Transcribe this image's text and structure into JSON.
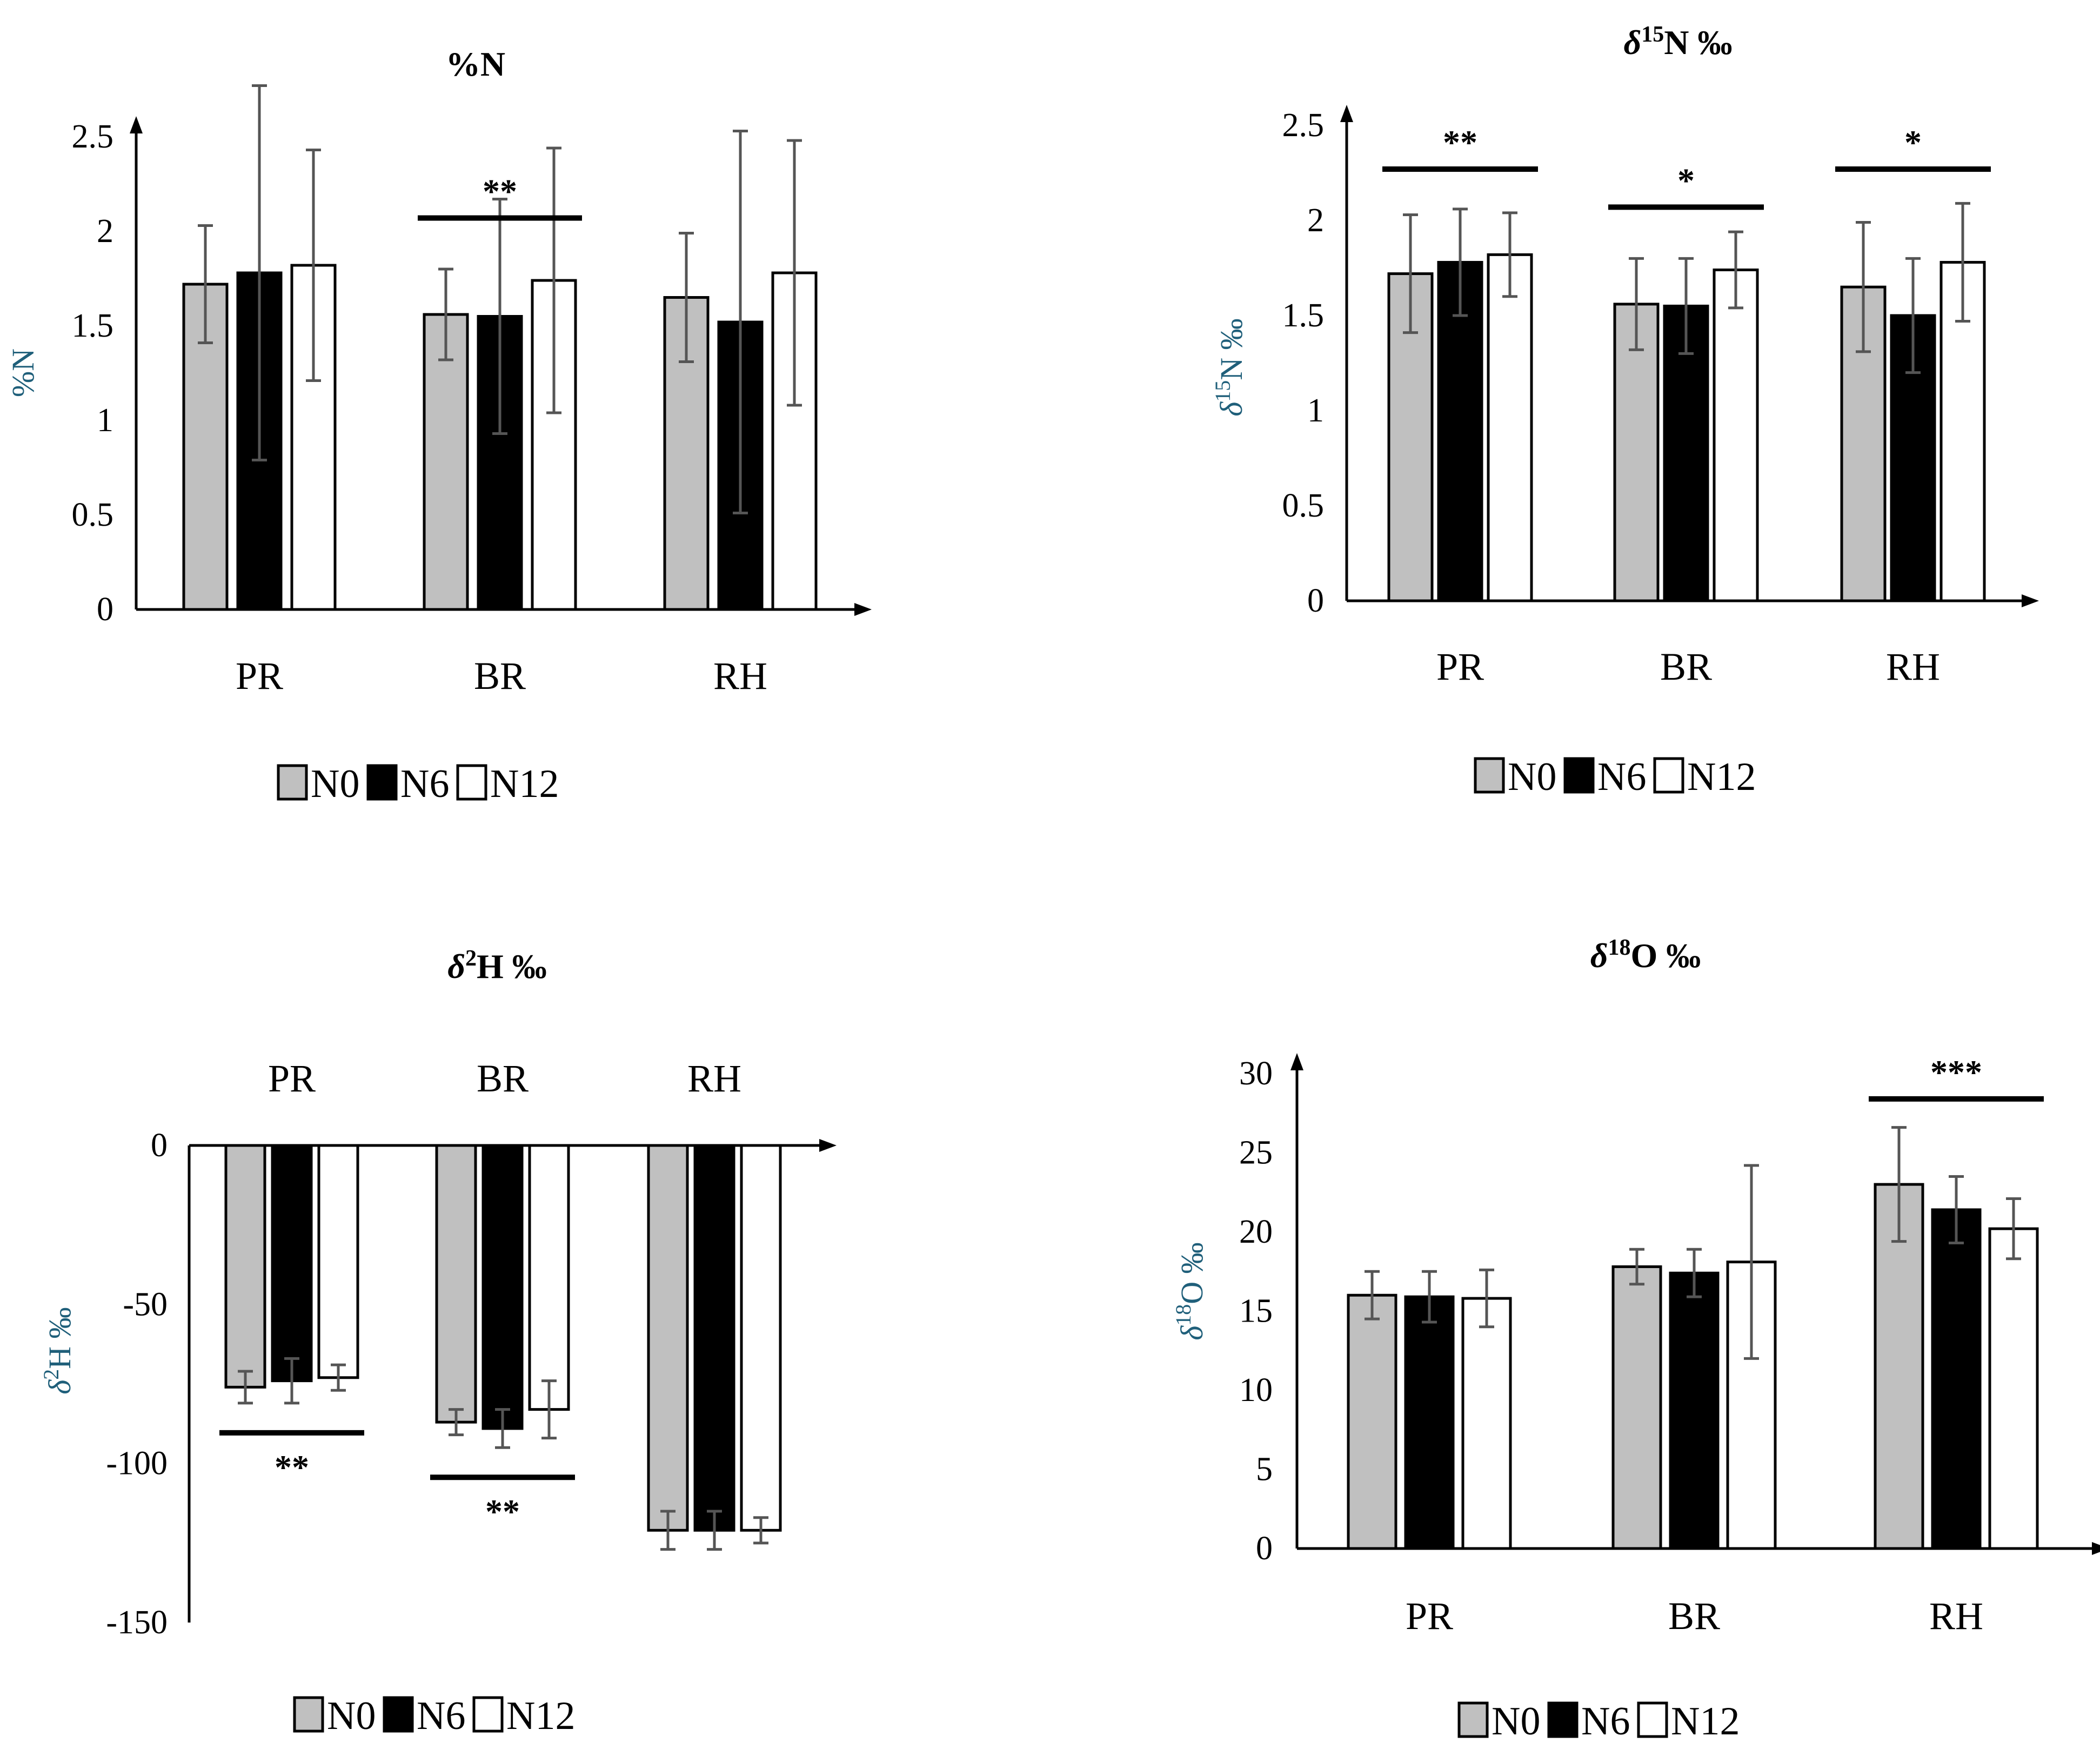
{
  "colors": {
    "N0": "#c0c0c0",
    "N6": "#000000",
    "N12": "#ffffff",
    "axis": "#000000",
    "errorbar": "#555555",
    "ylabel": "#1f5f7a"
  },
  "chart_data": [
    {
      "id": "pn",
      "type": "bar",
      "title": "%N",
      "title_parts": [
        {
          "t": "%N"
        }
      ],
      "ylabel": "%N",
      "ylim": [
        0,
        2.5
      ],
      "ytick_step": 0.5,
      "yticks": [
        "0",
        "0.5",
        "1",
        "1.5",
        "2",
        "2.5"
      ],
      "categories": [
        "PR",
        "BR",
        "RH"
      ],
      "series": [
        {
          "name": "N0",
          "values": [
            1.72,
            1.56,
            1.65
          ],
          "errors": [
            0.31,
            0.24,
            0.34
          ]
        },
        {
          "name": "N6",
          "values": [
            1.78,
            1.55,
            1.52
          ],
          "errors": [
            0.99,
            0.62,
            1.01
          ]
        },
        {
          "name": "N12",
          "values": [
            1.82,
            1.74,
            1.78
          ],
          "errors": [
            0.61,
            0.7,
            0.7
          ]
        }
      ],
      "significance": [
        {
          "category": "BR",
          "label": "**"
        }
      ],
      "legend": [
        "N0",
        "N6",
        "N12"
      ]
    },
    {
      "id": "d15n",
      "type": "bar",
      "title": "δ15N ‰",
      "title_parts": [
        {
          "t": "δ",
          "i": true
        },
        {
          "t": "15",
          "sup": true
        },
        {
          "t": "N ‰"
        }
      ],
      "ylabel": "δ15N ‰",
      "ylim": [
        0,
        2.5
      ],
      "ytick_step": 0.5,
      "yticks": [
        "0",
        "0.5",
        "1",
        "1.5",
        "2",
        "2.5"
      ],
      "categories": [
        "PR",
        "BR",
        "RH"
      ],
      "series": [
        {
          "name": "N0",
          "values": [
            1.72,
            1.56,
            1.65
          ],
          "errors": [
            0.31,
            0.24,
            0.34
          ]
        },
        {
          "name": "N6",
          "values": [
            1.78,
            1.55,
            1.5
          ],
          "errors": [
            0.28,
            0.25,
            0.3
          ]
        },
        {
          "name": "N12",
          "values": [
            1.82,
            1.74,
            1.78
          ],
          "errors": [
            0.22,
            0.2,
            0.31
          ]
        }
      ],
      "significance": [
        {
          "category": "PR",
          "label": "**"
        },
        {
          "category": "BR",
          "label": "*"
        },
        {
          "category": "RH",
          "label": "*"
        }
      ],
      "legend": [
        "N0",
        "N6",
        "N12"
      ]
    },
    {
      "id": "d2h",
      "type": "bar",
      "title": "δ2H ‰",
      "title_parts": [
        {
          "t": "δ",
          "i": true
        },
        {
          "t": "2",
          "sup": true
        },
        {
          "t": "H ‰"
        }
      ],
      "ylabel": "δ2H ‰",
      "ylim": [
        -150,
        0
      ],
      "ytick_step": 50,
      "yticks": [
        "-150",
        "-100",
        "-50",
        "0"
      ],
      "categories": [
        "PR",
        "BR",
        "RH"
      ],
      "series": [
        {
          "name": "N0",
          "values": [
            -76,
            -87,
            -121
          ],
          "errors": [
            5,
            4,
            6
          ]
        },
        {
          "name": "N6",
          "values": [
            -74,
            -89,
            -121
          ],
          "errors": [
            7,
            6,
            6
          ]
        },
        {
          "name": "N12",
          "values": [
            -73,
            -83,
            -121
          ],
          "errors": [
            4,
            9,
            4
          ]
        }
      ],
      "significance": [
        {
          "category": "PR",
          "label": "**"
        },
        {
          "category": "BR",
          "label": "**"
        }
      ],
      "legend": [
        "N0",
        "N6",
        "N12"
      ]
    },
    {
      "id": "d18o",
      "type": "bar",
      "title": "δ18O ‰",
      "title_parts": [
        {
          "t": "δ",
          "i": true
        },
        {
          "t": "18",
          "sup": true
        },
        {
          "t": "O ‰"
        }
      ],
      "ylabel": "δ18O ‰",
      "ylim": [
        0,
        30
      ],
      "ytick_step": 5,
      "yticks": [
        "0",
        "5",
        "10",
        "15",
        "20",
        "25",
        "30"
      ],
      "categories": [
        "PR",
        "BR",
        "RH"
      ],
      "series": [
        {
          "name": "N0",
          "values": [
            16.0,
            17.8,
            23.0
          ],
          "errors": [
            1.5,
            1.1,
            3.6
          ]
        },
        {
          "name": "N6",
          "values": [
            15.9,
            17.4,
            21.4
          ],
          "errors": [
            1.6,
            1.5,
            2.1
          ]
        },
        {
          "name": "N12",
          "values": [
            15.8,
            18.1,
            20.2
          ],
          "errors": [
            1.8,
            6.1,
            1.9
          ]
        }
      ],
      "significance": [
        {
          "category": "RH",
          "label": "***"
        }
      ],
      "legend": [
        "N0",
        "N6",
        "N12"
      ]
    }
  ]
}
